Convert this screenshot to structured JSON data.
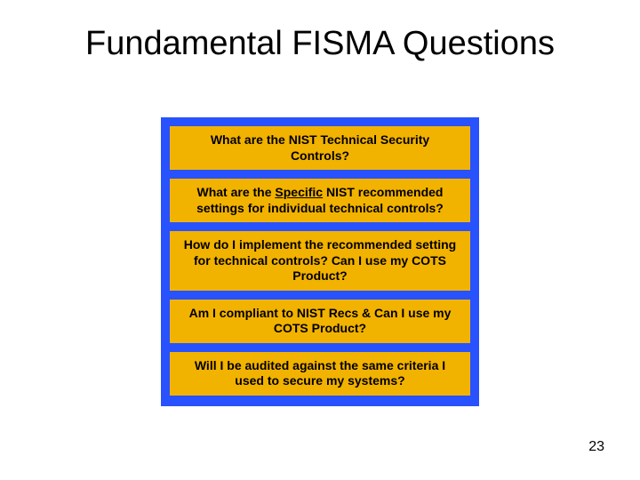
{
  "slide": {
    "title": "Fundamental FISMA Questions",
    "title_fontsize": 38,
    "title_color": "#000000",
    "background_color": "#ffffff",
    "page_number": "23",
    "page_number_fontsize": 16,
    "panel": {
      "background_color": "#2952ff",
      "questions": [
        {
          "prefix": "What are the NIST Technical Security Controls?",
          "underlined": "",
          "suffix": ""
        },
        {
          "prefix": "What are the ",
          "underlined": "Specific",
          "suffix": " NIST recommended settings for individual technical controls?"
        },
        {
          "prefix": "How do I implement the recommended setting for technical controls? Can I use my COTS Product?",
          "underlined": "",
          "suffix": ""
        },
        {
          "prefix": "Am I compliant to NIST Recs & Can I use my COTS Product?",
          "underlined": "",
          "suffix": ""
        },
        {
          "prefix": "Will I be audited against the same criteria I used to secure my systems?",
          "underlined": "",
          "suffix": ""
        }
      ],
      "question_background_color": "#f2b200",
      "question_text_color": "#000000",
      "question_fontsize": 14,
      "gap": 10
    }
  }
}
